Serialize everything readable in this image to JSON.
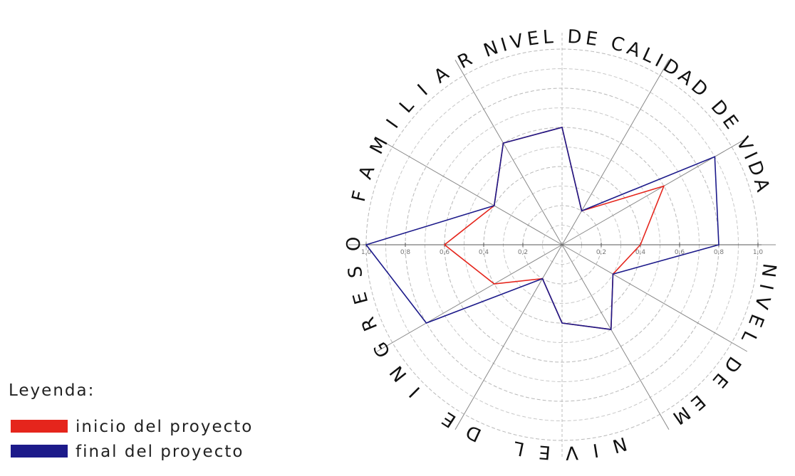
{
  "chart_data": {
    "type": "radar",
    "categories": [
      null,
      null,
      null,
      null,
      null,
      null,
      null,
      null,
      null,
      null,
      null,
      null
    ],
    "axis_labels": [
      "NIVEL DE CALIDAD DE VIDA",
      "NIVEL DE EMPLEO",
      "NIVEL DE INGRESO FAMILIAR"
    ],
    "rlim": [
      0,
      1.0
    ],
    "rticks": [
      {
        "value": 0.2,
        "label": "0,2"
      },
      {
        "value": 0.4,
        "label": "0,4"
      },
      {
        "value": 0.6,
        "label": "0,6"
      },
      {
        "value": 0.8,
        "label": "0,8"
      },
      {
        "value": 1.0,
        "label": "1,0"
      }
    ],
    "minor_rticks": [
      0.1,
      0.3,
      0.5,
      0.7,
      0.9
    ],
    "grid": true,
    "legend_title": "Leyenda:",
    "legend": "lower left",
    "series": [
      {
        "name": "inicio del proyecto",
        "color": "#e5251c",
        "values": [
          0.4,
          0.6,
          0.2,
          0.6,
          0.6,
          0.4,
          0.6,
          0.4,
          0.2,
          0.4,
          0.5,
          0.3
        ]
      },
      {
        "name": "final del proyecto",
        "color": "#1c1a8a",
        "values": [
          0.8,
          0.9,
          0.2,
          0.6,
          0.6,
          0.4,
          1.0,
          0.8,
          0.2,
          0.4,
          0.5,
          0.3
        ]
      }
    ]
  }
}
